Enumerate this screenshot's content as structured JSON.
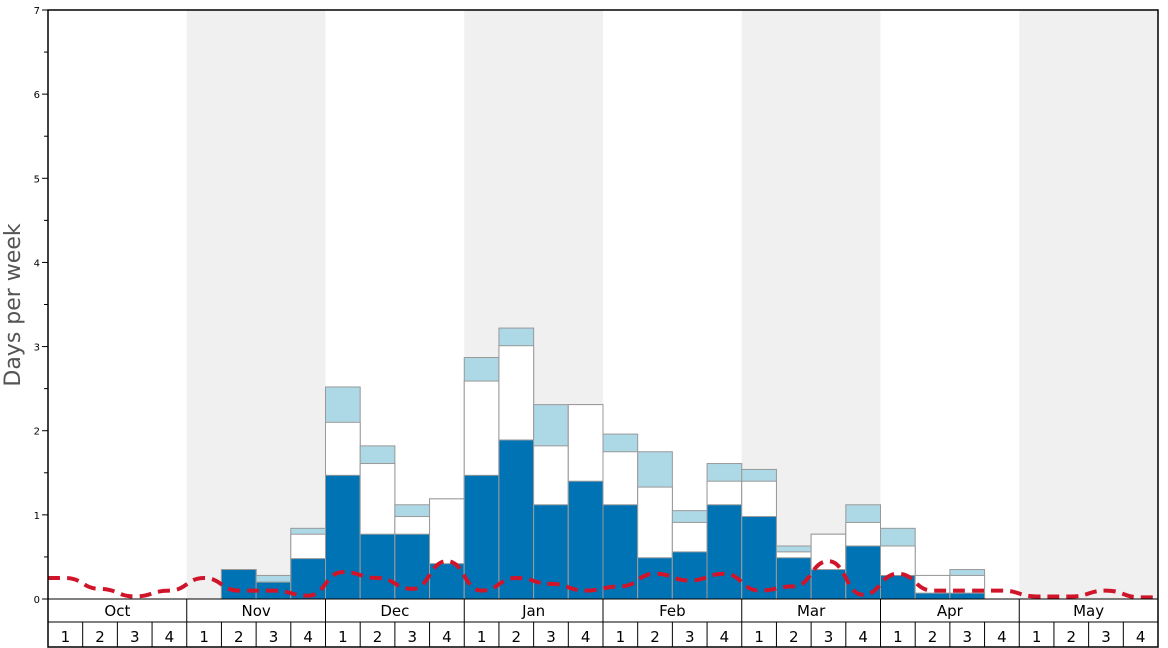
{
  "chart_data": {
    "type": "bar",
    "ylabel": "Days per week",
    "ylim": [
      0,
      7
    ],
    "yticks": [
      0,
      1,
      2,
      3,
      4,
      5,
      6,
      7
    ],
    "months": [
      "Oct",
      "Nov",
      "Dec",
      "Jan",
      "Feb",
      "Mar",
      "Apr",
      "May"
    ],
    "weeks": [
      "1",
      "2",
      "3",
      "4"
    ],
    "colors": {
      "dark": "#0073b5",
      "white": "#ffffff",
      "light": "#add8e6",
      "line": "#d0152a",
      "shade": "#f0f0f0"
    },
    "series": [
      {
        "values": [
          0,
          0,
          0,
          0,
          0,
          0.35,
          0.2,
          0.48,
          1.47,
          0.77,
          0.77,
          0.42,
          1.47,
          1.89,
          1.12,
          1.4,
          1.12,
          0.49,
          0.56,
          1.12,
          0.98,
          0.49,
          0.35,
          0.63,
          0.28,
          0.07,
          0.07,
          0,
          0,
          0,
          0,
          0
        ]
      },
      {
        "values": [
          0,
          0,
          0,
          0,
          0,
          0.35,
          0.2,
          0.77,
          2.1,
          1.61,
          0.98,
          1.19,
          2.59,
          3.01,
          1.82,
          2.31,
          1.75,
          1.33,
          0.91,
          1.4,
          1.4,
          0.56,
          0.77,
          0.91,
          0.63,
          0.28,
          0.28,
          0,
          0,
          0,
          0,
          0
        ]
      },
      {
        "values": [
          0,
          0,
          0,
          0,
          0,
          0.35,
          0.28,
          0.84,
          2.52,
          1.82,
          1.12,
          1.19,
          2.87,
          3.22,
          2.31,
          2.31,
          1.96,
          1.75,
          1.05,
          1.61,
          1.54,
          0.63,
          0.77,
          1.12,
          0.84,
          0.28,
          0.35,
          0,
          0,
          0,
          0,
          0
        ]
      },
      {
        "type": "line",
        "values": [
          0.25,
          0.12,
          0.03,
          0.1,
          0.25,
          0.1,
          0.1,
          0.04,
          0.32,
          0.25,
          0.12,
          0.45,
          0.1,
          0.25,
          0.18,
          0.1,
          0.15,
          0.3,
          0.22,
          0.3,
          0.1,
          0.15,
          0.45,
          0.05,
          0.3,
          0.1,
          0.1,
          0.1,
          0.03,
          0.03,
          0.1,
          0.02
        ]
      }
    ]
  }
}
